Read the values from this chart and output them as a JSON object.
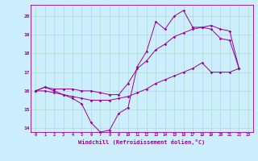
{
  "xlabel": "Windchill (Refroidissement éolien,°C)",
  "background_color": "#cceeff",
  "grid_color": "#aaddcc",
  "line_color": "#990099",
  "xlim": [
    -0.5,
    23.5
  ],
  "ylim": [
    13.8,
    20.6
  ],
  "yticks": [
    14,
    15,
    16,
    17,
    18,
    19,
    20
  ],
  "xticks": [
    0,
    1,
    2,
    3,
    4,
    5,
    6,
    7,
    8,
    9,
    10,
    11,
    12,
    13,
    14,
    15,
    16,
    17,
    18,
    19,
    20,
    21,
    22,
    23
  ],
  "series1_x": [
    0,
    1,
    2,
    3,
    4,
    5,
    6,
    7,
    8,
    9,
    10,
    11,
    12,
    13,
    14,
    15,
    16,
    17,
    18,
    19,
    20,
    21,
    22
  ],
  "series1_y": [
    16.0,
    16.2,
    16.0,
    15.8,
    15.6,
    15.3,
    14.3,
    13.8,
    13.9,
    14.8,
    15.1,
    17.3,
    18.1,
    19.7,
    19.3,
    20.0,
    20.3,
    19.4,
    19.4,
    19.3,
    18.8,
    18.7,
    17.2
  ],
  "series2_x": [
    0,
    1,
    2,
    3,
    4,
    5,
    6,
    7,
    8,
    9,
    10,
    11,
    12,
    13,
    14,
    15,
    16,
    17,
    18,
    19,
    20,
    21,
    22
  ],
  "series2_y": [
    16.0,
    16.2,
    16.1,
    16.1,
    16.1,
    16.0,
    16.0,
    15.9,
    15.8,
    15.8,
    16.4,
    17.2,
    17.6,
    18.2,
    18.5,
    18.9,
    19.1,
    19.3,
    19.4,
    19.5,
    19.3,
    19.2,
    17.2
  ],
  "series3_x": [
    0,
    1,
    2,
    3,
    4,
    5,
    6,
    7,
    8,
    9,
    10,
    11,
    12,
    13,
    14,
    15,
    16,
    17,
    18,
    19,
    20,
    21,
    22
  ],
  "series3_y": [
    16.0,
    16.0,
    15.9,
    15.8,
    15.7,
    15.6,
    15.5,
    15.5,
    15.5,
    15.6,
    15.7,
    15.9,
    16.1,
    16.4,
    16.6,
    16.8,
    17.0,
    17.2,
    17.5,
    17.0,
    17.0,
    17.0,
    17.2
  ]
}
